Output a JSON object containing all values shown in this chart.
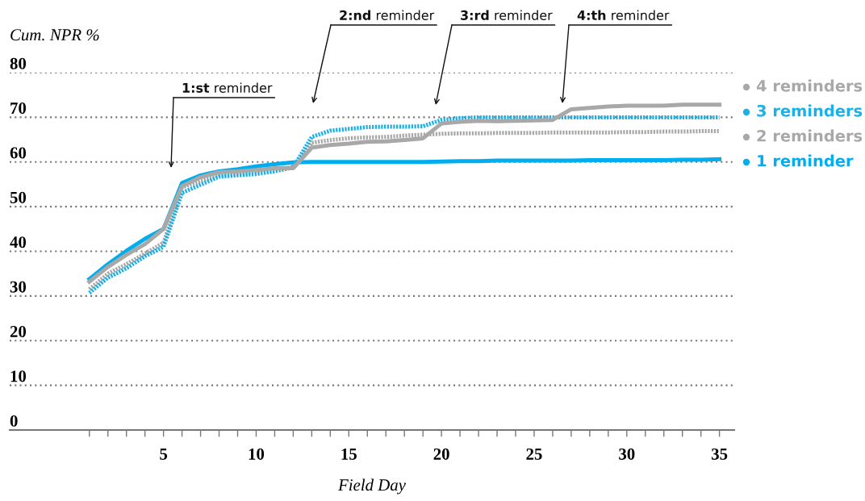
{
  "chart_data": {
    "type": "line",
    "xlabel": "Field Day",
    "ylabel": "Cum. NPR %",
    "x": [
      1,
      2,
      3,
      4,
      5,
      6,
      7,
      8,
      9,
      10,
      11,
      12,
      13,
      14,
      15,
      16,
      17,
      18,
      19,
      20,
      21,
      22,
      23,
      24,
      25,
      26,
      27,
      28,
      29,
      30,
      31,
      32,
      33,
      34,
      35
    ],
    "series": [
      {
        "name": "4 reminders",
        "color": "#a8a8a8",
        "line_style": "solid",
        "values": [
          33.2,
          36.5,
          39.2,
          41.6,
          45.0,
          54.6,
          56.6,
          57.7,
          57.9,
          58.2,
          58.6,
          58.6,
          63.2,
          63.8,
          64.1,
          64.5,
          64.6,
          64.9,
          65.3,
          68.6,
          69.0,
          69.2,
          69.1,
          69.2,
          69.3,
          69.4,
          71.8,
          72.1,
          72.4,
          72.6,
          72.6,
          72.6,
          72.8,
          72.8,
          72.8
        ]
      },
      {
        "name": "3 reminders",
        "color": "#1ab0e8",
        "line_style": "dotted",
        "values": [
          30.7,
          34.1,
          36.2,
          38.9,
          41.0,
          53.1,
          54.9,
          56.7,
          57.0,
          57.3,
          57.9,
          58.8,
          65.6,
          67.0,
          67.4,
          67.8,
          67.9,
          67.9,
          68.0,
          69.4,
          69.8,
          70.0,
          70.0,
          70.0,
          70.0,
          70.0,
          70.0,
          70.0,
          70.0,
          70.0,
          70.0,
          70.0,
          70.0,
          70.0,
          70.0
        ]
      },
      {
        "name": "2 reminders",
        "color": "#a8a8a8",
        "line_style": "dotted",
        "values": [
          31.5,
          35.0,
          37.1,
          39.5,
          41.9,
          54.3,
          55.8,
          57.0,
          57.3,
          57.8,
          58.3,
          58.9,
          64.3,
          64.9,
          65.3,
          65.5,
          65.6,
          65.9,
          66.1,
          66.3,
          66.4,
          66.4,
          66.5,
          66.5,
          66.5,
          66.6,
          66.6,
          66.6,
          66.6,
          66.7,
          66.7,
          66.8,
          66.8,
          66.9,
          66.9
        ]
      },
      {
        "name": "1 reminder",
        "color": "#00aeef",
        "line_style": "solid",
        "values": [
          33.8,
          37.1,
          40.1,
          42.8,
          45.0,
          55.3,
          57.0,
          57.9,
          58.4,
          59.0,
          59.5,
          59.9,
          60.0,
          60.0,
          60.0,
          60.0,
          60.0,
          60.0,
          60.0,
          60.1,
          60.2,
          60.2,
          60.3,
          60.3,
          60.3,
          60.3,
          60.3,
          60.4,
          60.4,
          60.4,
          60.4,
          60.4,
          60.5,
          60.5,
          60.6
        ]
      }
    ],
    "xlim": [
      -3.3,
      35.8
    ],
    "xticks": [
      {
        "value": 1,
        "label": null
      },
      {
        "value": 2,
        "label": null
      },
      {
        "value": 3,
        "label": null
      },
      {
        "value": 4,
        "label": null
      },
      5,
      {
        "value": 6,
        "label": null
      },
      {
        "value": 7,
        "label": null
      },
      {
        "value": 8,
        "label": null
      },
      {
        "value": 9,
        "label": null
      },
      10,
      {
        "value": 11,
        "label": null
      },
      {
        "value": 12,
        "label": null
      },
      {
        "value": 13,
        "label": null
      },
      {
        "value": 14,
        "label": null
      },
      15,
      {
        "value": 16,
        "label": null
      },
      {
        "value": 17,
        "label": null
      },
      {
        "value": 18,
        "label": null
      },
      {
        "value": 19,
        "label": null
      },
      20,
      {
        "value": 21,
        "label": null
      },
      {
        "value": 22,
        "label": null
      },
      {
        "value": 23,
        "label": null
      },
      {
        "value": 24,
        "label": null
      },
      25,
      {
        "value": 26,
        "label": null
      },
      {
        "value": 27,
        "label": null
      },
      {
        "value": 28,
        "label": null
      },
      {
        "value": 29,
        "label": null
      },
      30,
      {
        "value": 31,
        "label": null
      },
      {
        "value": 32,
        "label": null
      },
      {
        "value": 33,
        "label": null
      },
      {
        "value": 34,
        "label": null
      },
      35
    ],
    "ylim": [
      0,
      80
    ],
    "yticks": [
      0,
      10,
      20,
      30,
      40,
      50,
      60,
      70,
      80
    ],
    "grid": "y",
    "legend": "right",
    "marker": "none",
    "annotations": [
      "1:st reminder",
      "2:nd reminder",
      "3:rd reminder",
      "4:th reminder"
    ]
  }
}
